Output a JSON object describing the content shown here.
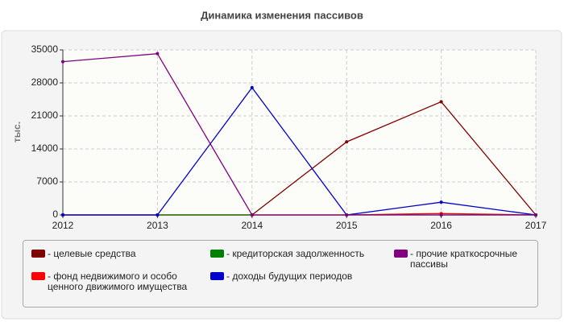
{
  "chart_data": {
    "type": "line",
    "title": "Динамика изменения пассивов",
    "y_label": "тыс.",
    "x": [
      2012,
      2013,
      2014,
      2015,
      2016,
      2017
    ],
    "xlim": [
      2012,
      2017
    ],
    "xticks": [
      2012,
      2013,
      2014,
      2015,
      2016,
      2017
    ],
    "ylim": [
      0,
      35000
    ],
    "yticks": [
      0,
      7000,
      14000,
      21000,
      28000,
      35000
    ],
    "grid": true,
    "series": [
      {
        "name": "- целевые средства",
        "color": "#800000",
        "values": [
          0,
          0,
          0,
          15500,
          24000,
          0
        ]
      },
      {
        "name": "- фонд недвижимого и особо ценного движимого имущества",
        "color": "#ff0000",
        "values": [
          0,
          0,
          0,
          0,
          300,
          0
        ]
      },
      {
        "name": "- кредиторская задолженность",
        "color": "#008000",
        "values": [
          0,
          0,
          0,
          0,
          0,
          0
        ]
      },
      {
        "name": "- доходы будущих периодов",
        "color": "#0000cc",
        "values": [
          0,
          0,
          27000,
          0,
          2700,
          0
        ]
      },
      {
        "name": "- прочие краткосрочные пассивы",
        "color": "#800080",
        "values": [
          32500,
          34200,
          0,
          0,
          0,
          0
        ]
      }
    ]
  }
}
